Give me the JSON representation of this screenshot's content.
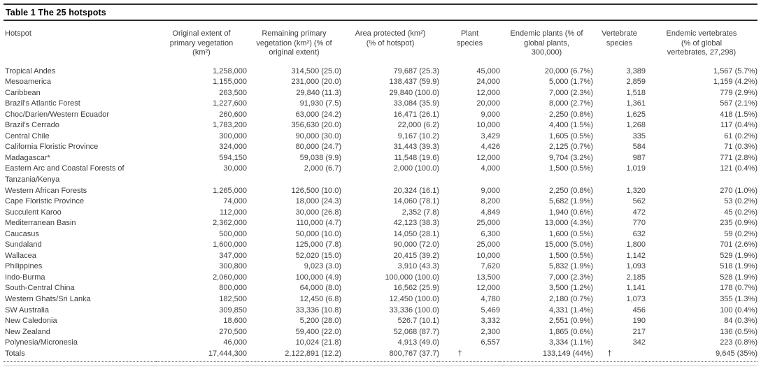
{
  "title": "Table 1 The 25 hotspots",
  "table": {
    "columns": [
      "Hotspot",
      "Original extent of primary vegetation (km²)",
      "Remaining primary vegetation (km²) (% of original extent)",
      "Area protected (km²) (% of hotspot)",
      "Plant species",
      "Endemic plants (% of global plants, 300,000)",
      "Vertebrate species",
      "Endemic vertebrates (% of global vertebrates, 27,298)"
    ],
    "rows": [
      [
        "Tropical Andes",
        "1,258,000",
        "314,500 (25.0)",
        "79,687 (25.3)",
        "45,000",
        "20,000 (6.7%)",
        "3,389",
        "1,567 (5.7%)"
      ],
      [
        "Mesoamerica",
        "1,155,000",
        "231,000 (20.0)",
        "138,437 (59.9)",
        "24,000",
        "5,000 (1.7%)",
        "2,859",
        "1,159 (4.2%)"
      ],
      [
        "Caribbean",
        "263,500",
        "29,840 (11.3)",
        "29,840 (100.0)",
        "12,000",
        "7,000 (2.3%)",
        "1,518",
        "779 (2.9%)"
      ],
      [
        "Brazil's Atlantic Forest",
        "1,227,600",
        "91,930 (7.5)",
        "33,084 (35.9)",
        "20,000",
        "8,000 (2.7%)",
        "1,361",
        "567 (2.1%)"
      ],
      [
        "Choc/Darien/Western Ecuador",
        "260,600",
        "63,000 (24.2)",
        "16,471 (26.1)",
        "9,000",
        "2,250 (0.8%)",
        "1,625",
        "418 (1.5%)"
      ],
      [
        "Brazil's Cerrado",
        "1,783,200",
        "356,630 (20.0)",
        "22,000 (6.2)",
        "10,000",
        "4,400 (1.5%)",
        "1,268",
        "117 (0.4%)"
      ],
      [
        "Central Chile",
        "300,000",
        "90,000 (30.0)",
        "9,167 (10.2)",
        "3,429",
        "1,605 (0.5%)",
        "335",
        "61 (0.2%)"
      ],
      [
        "California Floristic Province",
        "324,000",
        "80,000 (24.7)",
        "31,443 (39.3)",
        "4,426",
        "2,125 (0.7%)",
        "584",
        "71 (0.3%)"
      ],
      [
        "Madagascar*",
        "594,150",
        "59,038 (9.9)",
        "11,548 (19.6)",
        "12,000",
        "9,704 (3.2%)",
        "987",
        "771 (2.8%)"
      ],
      [
        "Eastern Arc and Coastal Forests of Tanzania/Kenya",
        "30,000",
        "2,000 (6.7)",
        "2,000 (100.0)",
        "4,000",
        "1,500 (0.5%)",
        "1,019",
        "121 (0.4%)"
      ],
      [
        "Western African Forests",
        "1,265,000",
        "126,500 (10.0)",
        "20,324 (16.1)",
        "9,000",
        "2,250 (0.8%)",
        "1,320",
        "270 (1.0%)"
      ],
      [
        "Cape Floristic Province",
        "74,000",
        "18,000 (24.3)",
        "14,060 (78.1)",
        "8,200",
        "5,682 (1.9%)",
        "562",
        "53 (0.2%)"
      ],
      [
        "Succulent Karoo",
        "112,000",
        "30,000 (26.8)",
        "2,352 (7.8)",
        "4,849",
        "1,940 (0.6%)",
        "472",
        "45 (0.2%)"
      ],
      [
        "Mediterranean Basin",
        "2,362,000",
        "110,000 (4.7)",
        "42,123 (38.3)",
        "25,000",
        "13,000 (4.3%)",
        "770",
        "235 (0.9%)"
      ],
      [
        "Caucasus",
        "500,000",
        "50,000 (10.0)",
        "14,050 (28.1)",
        "6,300",
        "1,600 (0.5%)",
        "632",
        "59 (0.2%)"
      ],
      [
        "Sundaland",
        "1,600,000",
        "125,000 (7.8)",
        "90,000 (72.0)",
        "25,000",
        "15,000 (5.0%)",
        "1,800",
        "701 (2.6%)"
      ],
      [
        "Wallacea",
        "347,000",
        "52,020 (15.0)",
        "20,415 (39.2)",
        "10,000",
        "1,500 (0.5%)",
        "1,142",
        "529 (1.9%)"
      ],
      [
        "Philippines",
        "300,800",
        "9,023 (3.0)",
        "3,910 (43.3)",
        "7,620",
        "5,832 (1.9%)",
        "1,093",
        "518 (1.9%)"
      ],
      [
        "Indo-Burma",
        "2,060,000",
        "100,000 (4.9)",
        "100,000 (100.0)",
        "13,500",
        "7,000 (2.3%)",
        "2,185",
        "528 (1.9%)"
      ],
      [
        "South-Central China",
        "800,000",
        "64,000 (8.0)",
        "16,562 (25.9)",
        "12,000",
        "3,500 (1.2%)",
        "1,141",
        "178 (0.7%)"
      ],
      [
        "Western Ghats/Sri Lanka",
        "182,500",
        "12,450 (6.8)",
        "12,450 (100.0)",
        "4,780",
        "2,180 (0.7%)",
        "1,073",
        "355 (1.3%)"
      ],
      [
        "SW Australia",
        "309,850",
        "33,336 (10.8)",
        "33,336 (100.0)",
        "5,469",
        "4,331 (1.4%)",
        "456",
        "100 (0.4%)"
      ],
      [
        "New Caledonia",
        "18,600",
        "5,200 (28.0)",
        "526.7 (10.1)",
        "3,332",
        "2,551 (0.9%)",
        "190",
        "84 (0.3%)"
      ],
      [
        "New Zealand",
        "270,500",
        "59,400 (22.0)",
        "52,068 (87.7)",
        "2,300",
        "1,865 (0.6%)",
        "217",
        "136 (0.5%)"
      ],
      [
        "Polynesia/Micronesia",
        "46,000",
        "10,024 (21.8)",
        "4,913 (49.0)",
        "6,557",
        "3,334 (1.1%)",
        "342",
        "223 (0.8%)"
      ],
      [
        "Totals",
        "17,444,300",
        "2,122,891 (12.2)",
        "800,767 (37.7)",
        "†",
        "133,149 (44%)",
        "†",
        "9,645 (35%)"
      ]
    ]
  }
}
